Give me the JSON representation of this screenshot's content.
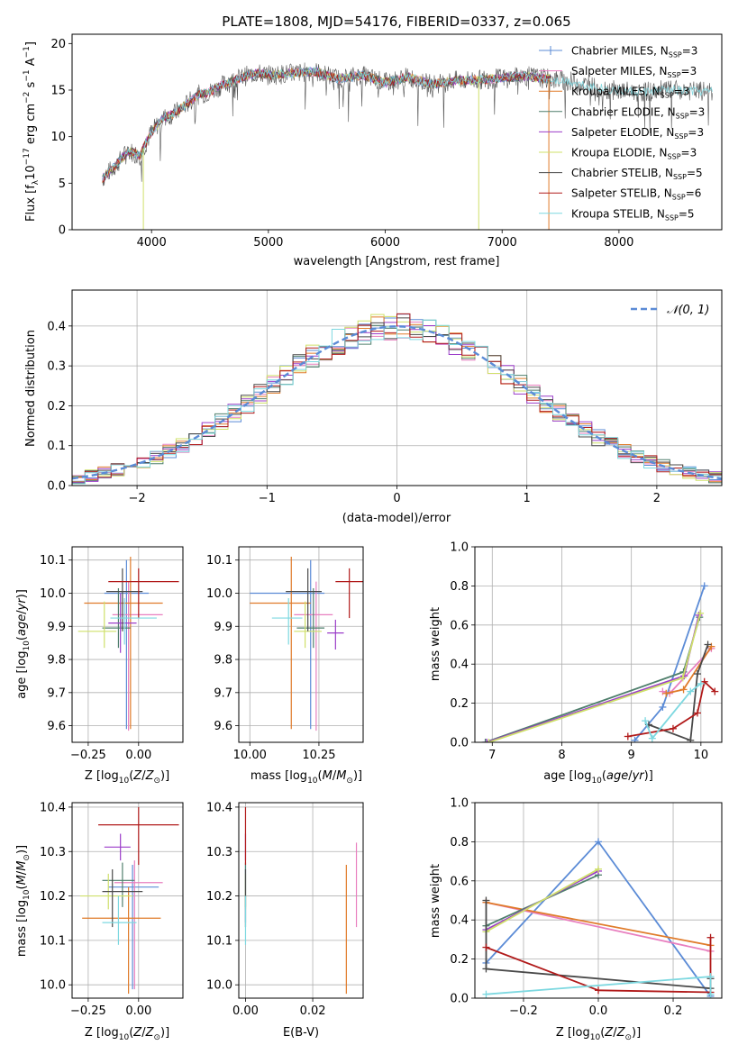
{
  "colors": {
    "Chabrier MILES": "#5b8bd6",
    "Salpeter MILES": "#e87fbf",
    "Kroupa MILES": "#e07b2a",
    "Chabrier ELODIE": "#4f7f6c",
    "Salpeter ELODIE": "#9b3dc9",
    "Kroupa ELODIE": "#cfe06a",
    "Chabrier STELIB": "#4a4a4a",
    "Salpeter STELIB": "#b11a1a",
    "Kroupa STELIB": "#7dd8e0",
    "normal": "#5b8bd6"
  },
  "chart_data": [
    {
      "id": "spectrum",
      "type": "line",
      "title": "PLATE=1808, MJD=54176, FIBERID=0337, z=0.065",
      "xlabel": "wavelength [Angstrom, rest frame]",
      "ylabel": "Flux [fλ10⁻¹⁷ erg cm⁻² s⁻¹ A⁻¹]",
      "xlim": [
        3320,
        8880
      ],
      "ylim": [
        0,
        21
      ],
      "xticks": [
        4000,
        5000,
        6000,
        7000,
        8000
      ],
      "yticks": [
        0,
        5,
        10,
        15,
        20
      ],
      "grid": false,
      "legend_position": "top-right",
      "legend": [
        {
          "name": "Chabrier MILES",
          "label": "Chabrier MILES, N",
          "sub": "SSP",
          "tail": "=3"
        },
        {
          "name": "Salpeter MILES",
          "label": "Salpeter MILES, N",
          "sub": "SSP",
          "tail": "=3"
        },
        {
          "name": "Kroupa MILES",
          "label": "Kroupa MILES, N",
          "sub": "SSP",
          "tail": "=3"
        },
        {
          "name": "Chabrier ELODIE",
          "label": "Chabrier ELODIE, N",
          "sub": "SSP",
          "tail": "=3"
        },
        {
          "name": "Salpeter ELODIE",
          "label": "Salpeter ELODIE, N",
          "sub": "SSP",
          "tail": "=3"
        },
        {
          "name": "Kroupa ELODIE",
          "label": "Kroupa ELODIE, N",
          "sub": "SSP",
          "tail": "=3"
        },
        {
          "name": "Chabrier STELIB",
          "label": "Chabrier STELIB, N",
          "sub": "SSP",
          "tail": "=5"
        },
        {
          "name": "Salpeter STELIB",
          "label": "Salpeter STELIB, N",
          "sub": "SSP",
          "tail": "=6"
        },
        {
          "name": "Kroupa STELIB",
          "label": "Kroupa STELIB, N",
          "sub": "SSP",
          "tail": "=5"
        }
      ],
      "continuum": {
        "x": [
          3580,
          3700,
          3800,
          3900,
          4000,
          4100,
          4200,
          4300,
          4400,
          4500,
          4600,
          4700,
          4800,
          4900,
          5000,
          5200,
          5400,
          5600,
          5800,
          6000,
          6200,
          6400,
          6600,
          6800,
          7000,
          7200,
          7400,
          7600,
          7800,
          8000,
          8200,
          8400,
          8600,
          8800
        ],
        "y": [
          5.5,
          7.0,
          8.5,
          8.0,
          10.5,
          12.0,
          12.5,
          13.5,
          14.5,
          14.8,
          15.5,
          16.0,
          16.5,
          16.8,
          16.6,
          16.8,
          17.0,
          16.2,
          16.6,
          15.8,
          16.4,
          15.6,
          16.0,
          16.1,
          16.3,
          16.5,
          16.2,
          15.9,
          15.3,
          14.9,
          14.8,
          15.0,
          14.9,
          14.8
        ]
      },
      "dips": [
        {
          "x": 3930,
          "y": 0
        },
        {
          "x": 6800,
          "y": 0
        },
        {
          "x": 7400,
          "y": 0
        }
      ]
    },
    {
      "id": "residuals",
      "type": "histogram",
      "xlabel": "(data-model)/error",
      "ylabel": "Normed distribution",
      "xlim": [
        -2.5,
        2.5
      ],
      "ylim": [
        0,
        0.49
      ],
      "xticks": [
        -2,
        -1,
        0,
        1,
        2
      ],
      "yticks": [
        0.0,
        0.1,
        0.2,
        0.3,
        0.4
      ],
      "grid": true,
      "legend_position": "top-right",
      "legend_label": "𝒩(0, 1)",
      "bin_width": 0.1,
      "bin_start": -2.5,
      "series_names": [
        "Chabrier MILES",
        "Salpeter MILES",
        "Kroupa MILES",
        "Chabrier ELODIE",
        "Salpeter ELODIE",
        "Kroupa ELODIE",
        "Chabrier STELIB",
        "Salpeter STELIB",
        "Kroupa STELIB"
      ]
    },
    {
      "id": "age-vs-Z",
      "type": "errorbar",
      "xlabel": "Z [log10(Z/Z⊙)]",
      "ylabel": "age  [log10(age/yr)]",
      "xlim": [
        -0.33,
        0.22
      ],
      "ylim": [
        9.55,
        10.14
      ],
      "xticks": [
        -0.25,
        0.0
      ],
      "yticks": [
        9.6,
        9.7,
        9.8,
        9.9,
        10.0,
        10.1
      ],
      "grid": true,
      "points": [
        {
          "series": "Chabrier MILES",
          "x": -0.06,
          "xerr": [
            0.11,
            0.11
          ],
          "y": 10.0,
          "yerr": [
            0.41,
            0.1
          ]
        },
        {
          "series": "Salpeter MILES",
          "x": -0.05,
          "xerr": [
            0.08,
            0.17
          ],
          "y": 9.935,
          "yerr": [
            0.35,
            0.1
          ]
        },
        {
          "series": "Kroupa MILES",
          "x": -0.04,
          "xerr": [
            0.23,
            0.16
          ],
          "y": 9.97,
          "yerr": [
            0.38,
            0.14
          ]
        },
        {
          "series": "Chabrier ELODIE",
          "x": -0.1,
          "xerr": [
            0.08,
            0.06
          ],
          "y": 9.895,
          "yerr": [
            0.06,
            0.12
          ]
        },
        {
          "series": "Salpeter ELODIE",
          "x": -0.09,
          "xerr": [
            0.06,
            0.08
          ],
          "y": 9.91,
          "yerr": [
            0.09,
            0.09
          ]
        },
        {
          "series": "Kroupa ELODIE",
          "x": -0.17,
          "xerr": [
            0.13,
            0.06
          ],
          "y": 9.885,
          "yerr": [
            0.05,
            0.09
          ]
        },
        {
          "series": "Chabrier STELIB",
          "x": -0.08,
          "xerr": [
            0.08,
            0.1
          ],
          "y": 10.005,
          "yerr": [
            0.12,
            0.07
          ]
        },
        {
          "series": "Salpeter STELIB",
          "x": 0.0,
          "xerr": [
            0.15,
            0.2
          ],
          "y": 10.035,
          "yerr": [
            0.11,
            0.04
          ]
        },
        {
          "series": "Kroupa STELIB",
          "x": -0.07,
          "xerr": [
            0.07,
            0.16
          ],
          "y": 9.925,
          "yerr": [
            0.08,
            0.06
          ]
        }
      ]
    },
    {
      "id": "age-vs-mass",
      "type": "errorbar",
      "xlabel": "mass [log10(M/M⊙)]",
      "ylabel": "",
      "xlim": [
        9.96,
        10.41
      ],
      "ylim": [
        9.55,
        10.14
      ],
      "xticks": [
        10.0,
        10.25
      ],
      "yticks": [
        9.6,
        9.7,
        9.8,
        9.9,
        10.0,
        10.1
      ],
      "grid": true,
      "points": [
        {
          "series": "Chabrier MILES",
          "x": 10.22,
          "xerr": [
            0.22,
            0.05
          ],
          "y": 10.0,
          "yerr": [
            0.41,
            0.1
          ]
        },
        {
          "series": "Salpeter MILES",
          "x": 10.24,
          "xerr": [
            0.08,
            0.06
          ],
          "y": 9.935,
          "yerr": [
            0.35,
            0.1
          ]
        },
        {
          "series": "Kroupa MILES",
          "x": 10.15,
          "xerr": [
            0.15,
            0.07
          ],
          "y": 9.97,
          "yerr": [
            0.38,
            0.14
          ]
        },
        {
          "series": "Chabrier ELODIE",
          "x": 10.23,
          "xerr": [
            0.06,
            0.04
          ],
          "y": 9.895,
          "yerr": [
            0.06,
            0.12
          ]
        },
        {
          "series": "Salpeter ELODIE",
          "x": 10.31,
          "xerr": [
            0.03,
            0.03
          ],
          "y": 9.88,
          "yerr": [
            0.05,
            0.04
          ]
        },
        {
          "series": "Kroupa ELODIE",
          "x": 10.2,
          "xerr": [
            0.04,
            0.06
          ],
          "y": 9.885,
          "yerr": [
            0.05,
            0.09
          ]
        },
        {
          "series": "Chabrier STELIB",
          "x": 10.21,
          "xerr": [
            0.08,
            0.05
          ],
          "y": 10.005,
          "yerr": [
            0.12,
            0.07
          ]
        },
        {
          "series": "Salpeter STELIB",
          "x": 10.36,
          "xerr": [
            0.05,
            0.05
          ],
          "y": 10.035,
          "yerr": [
            0.11,
            0.04
          ]
        },
        {
          "series": "Kroupa STELIB",
          "x": 10.14,
          "xerr": [
            0.06,
            0.05
          ],
          "y": 9.925,
          "yerr": [
            0.08,
            0.06
          ]
        }
      ]
    },
    {
      "id": "weight-vs-age",
      "type": "line",
      "xlabel": "age  [log10(age/yr)]",
      "ylabel": "mass weight",
      "xlim": [
        6.75,
        10.3
      ],
      "ylim": [
        0,
        1.0
      ],
      "xticks": [
        7,
        8,
        9,
        10
      ],
      "yticks": [
        0.0,
        0.2,
        0.4,
        0.6,
        0.8,
        1.0
      ],
      "grid": true,
      "series": [
        {
          "name": "Chabrier MILES",
          "x": [
            9.05,
            9.45,
            10.05
          ],
          "y": [
            0.01,
            0.18,
            0.8
          ]
        },
        {
          "name": "Salpeter MILES",
          "x": [
            9.45,
            9.55,
            10.15
          ],
          "y": [
            0.26,
            0.25,
            0.48
          ]
        },
        {
          "name": "Kroupa MILES",
          "x": [
            9.5,
            9.75,
            10.15
          ],
          "y": [
            0.25,
            0.27,
            0.49
          ]
        },
        {
          "name": "Chabrier ELODIE",
          "x": [
            6.9,
            9.75,
            9.98
          ],
          "y": [
            0.0,
            0.36,
            0.64
          ]
        },
        {
          "name": "Salpeter ELODIE",
          "x": [
            6.92,
            9.76,
            9.97
          ],
          "y": [
            0.0,
            0.34,
            0.65
          ]
        },
        {
          "name": "Kroupa ELODIE",
          "x": [
            6.95,
            9.74,
            9.99
          ],
          "y": [
            0.0,
            0.33,
            0.66
          ]
        },
        {
          "name": "Chabrier STELIB",
          "x": [
            9.25,
            9.85,
            9.95,
            10.1
          ],
          "y": [
            0.09,
            0.01,
            0.35,
            0.5
          ]
        },
        {
          "name": "Salpeter STELIB",
          "x": [
            8.95,
            9.6,
            9.95,
            10.05,
            10.2
          ],
          "y": [
            0.03,
            0.07,
            0.15,
            0.31,
            0.26
          ]
        },
        {
          "name": "Kroupa STELIB",
          "x": [
            9.2,
            9.3,
            9.85,
            10.0
          ],
          "y": [
            0.11,
            0.02,
            0.26,
            0.3
          ]
        }
      ]
    },
    {
      "id": "mass-vs-Z",
      "type": "errorbar",
      "xlabel": "Z [log10(Z/Z⊙)]",
      "ylabel": "mass [log10(M/M⊙)]",
      "xlim": [
        -0.33,
        0.22
      ],
      "ylim": [
        9.97,
        10.41
      ],
      "xticks": [
        -0.25,
        0.0
      ],
      "yticks": [
        10.0,
        10.1,
        10.2,
        10.3,
        10.4
      ],
      "grid": true,
      "points": [
        {
          "series": "Chabrier MILES",
          "x": -0.03,
          "xerr": [
            0.12,
            0.13
          ],
          "y": 10.22,
          "yerr": [
            0.23,
            0.05
          ]
        },
        {
          "series": "Salpeter MILES",
          "x": -0.02,
          "xerr": [
            0.1,
            0.14
          ],
          "y": 10.23,
          "yerr": [
            0.24,
            0.05
          ]
        },
        {
          "series": "Kroupa MILES",
          "x": -0.05,
          "xerr": [
            0.23,
            0.16
          ],
          "y": 10.15,
          "yerr": [
            0.17,
            0.07
          ]
        },
        {
          "series": "Chabrier ELODIE",
          "x": -0.08,
          "xerr": [
            0.1,
            0.06
          ],
          "y": 10.235,
          "yerr": [
            0.06,
            0.04
          ]
        },
        {
          "series": "Salpeter ELODIE",
          "x": -0.09,
          "xerr": [
            0.08,
            0.05
          ],
          "y": 10.31,
          "yerr": [
            0.03,
            0.03
          ]
        },
        {
          "series": "Kroupa ELODIE",
          "x": -0.15,
          "xerr": [
            0.14,
            0.12
          ],
          "y": 10.2,
          "yerr": [
            0.03,
            0.05
          ]
        },
        {
          "series": "Chabrier STELIB",
          "x": -0.13,
          "xerr": [
            0.05,
            0.15
          ],
          "y": 10.21,
          "yerr": [
            0.08,
            0.05
          ]
        },
        {
          "series": "Salpeter STELIB",
          "x": 0.0,
          "xerr": [
            0.2,
            0.2
          ],
          "y": 10.36,
          "yerr": [
            0.09,
            0.04
          ]
        },
        {
          "series": "Kroupa STELIB",
          "x": -0.1,
          "xerr": [
            0.08,
            0.09
          ],
          "y": 10.14,
          "yerr": [
            0.05,
            0.06
          ]
        }
      ]
    },
    {
      "id": "mass-vs-ebv",
      "type": "errorbar",
      "xlabel": "E(B-V)",
      "ylabel": "",
      "xlim": [
        -0.002,
        0.035
      ],
      "ylim": [
        9.97,
        10.41
      ],
      "xticks": [
        0.0,
        0.02
      ],
      "yticks": [
        10.0,
        10.1,
        10.2,
        10.3,
        10.4
      ],
      "grid": true,
      "points": [
        {
          "series": "Chabrier MILES",
          "x": 0.0,
          "y": 10.22,
          "yerr": [
            0.08,
            0.05
          ]
        },
        {
          "series": "Salpeter MILES",
          "x": 0.033,
          "y": 10.23,
          "yerr": [
            0.1,
            0.09
          ]
        },
        {
          "series": "Kroupa MILES",
          "x": 0.03,
          "y": 10.15,
          "yerr": [
            0.17,
            0.12
          ]
        },
        {
          "series": "Chabrier ELODIE",
          "x": 0.0,
          "y": 10.235,
          "yerr": [
            0.06,
            0.04
          ]
        },
        {
          "series": "Salpeter ELODIE",
          "x": 0.0,
          "y": 10.31,
          "yerr": [
            0.03,
            0.03
          ]
        },
        {
          "series": "Kroupa ELODIE",
          "x": 0.0,
          "y": 10.2,
          "yerr": [
            0.03,
            0.05
          ]
        },
        {
          "series": "Chabrier STELIB",
          "x": 0.0,
          "y": 10.21,
          "yerr": [
            0.08,
            0.05
          ]
        },
        {
          "series": "Salpeter STELIB",
          "x": 0.0,
          "y": 10.36,
          "yerr": [
            0.09,
            0.04
          ]
        },
        {
          "series": "Kroupa STELIB",
          "x": 0.0,
          "y": 10.14,
          "yerr": [
            0.05,
            0.06
          ]
        }
      ]
    },
    {
      "id": "weight-vs-Z",
      "type": "line",
      "xlabel": "Z [log10(Z/Z⊙)]",
      "ylabel": "mass weight",
      "xlim": [
        -0.33,
        0.33
      ],
      "ylim": [
        0,
        1.0
      ],
      "xticks": [
        -0.2,
        0.0,
        0.2
      ],
      "yticks": [
        0.0,
        0.2,
        0.4,
        0.6,
        0.8,
        1.0
      ],
      "grid": true,
      "series": [
        {
          "name": "Chabrier MILES",
          "x": [
            -0.3,
            0.0,
            0.3
          ],
          "y": [
            0.18,
            0.8,
            0.01
          ]
        },
        {
          "name": "Salpeter MILES",
          "x": [
            -0.3,
            0.3
          ],
          "y": [
            0.49,
            0.24
          ]
        },
        {
          "name": "Kroupa MILES",
          "x": [
            -0.3,
            0.3
          ],
          "y": [
            0.49,
            0.27
          ]
        },
        {
          "name": "Chabrier ELODIE",
          "x": [
            -0.3,
            0.0
          ],
          "y": [
            0.37,
            0.63
          ]
        },
        {
          "name": "Salpeter ELODIE",
          "x": [
            -0.3,
            0.0
          ],
          "y": [
            0.35,
            0.65
          ]
        },
        {
          "name": "Kroupa ELODIE",
          "x": [
            -0.3,
            0.0
          ],
          "y": [
            0.34,
            0.66
          ]
        },
        {
          "name": "Chabrier STELIB",
          "x": [
            -0.3,
            -0.3,
            0.3,
            0.3
          ],
          "y": [
            0.5,
            0.15,
            0.05,
            0.1
          ]
        },
        {
          "name": "Salpeter STELIB",
          "x": [
            -0.3,
            0.0,
            0.3,
            0.3
          ],
          "y": [
            0.26,
            0.04,
            0.03,
            0.31
          ]
        },
        {
          "name": "Kroupa STELIB",
          "x": [
            -0.3,
            0.3,
            0.3
          ],
          "y": [
            0.02,
            0.11,
            0.02
          ]
        }
      ]
    }
  ]
}
